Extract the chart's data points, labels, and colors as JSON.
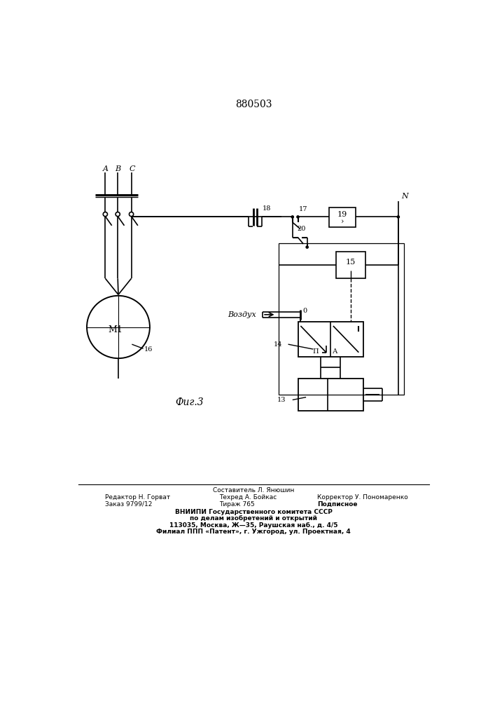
{
  "title": "880503",
  "fig_label": "Фиг.3",
  "background_color": "#ffffff",
  "line_color": "#000000",
  "bottom_text_line1": "Составитель Л. Янюшин",
  "bottom_text_line2_left": "Редактор Н. Горват",
  "bottom_text_line2_mid": "Техред А. Бойкас",
  "bottom_text_line2_right": "Корректор У. Пономаренко",
  "bottom_text_line3_left": "Заказ 9799/12",
  "bottom_text_line3_mid": "Тираж 765",
  "bottom_text_line3_right": "Подписное",
  "bottom_text_line4": "ВНИИПИ Государственного комитета СССР",
  "bottom_text_line5": "по делам изобретений и открытий",
  "bottom_text_line6": "113035, Москва, Ж—35, Раушская наб., д. 4/5",
  "bottom_text_line7": "Филиал ППП «Патент», г. Ужгород, ул. Проектная, 4"
}
